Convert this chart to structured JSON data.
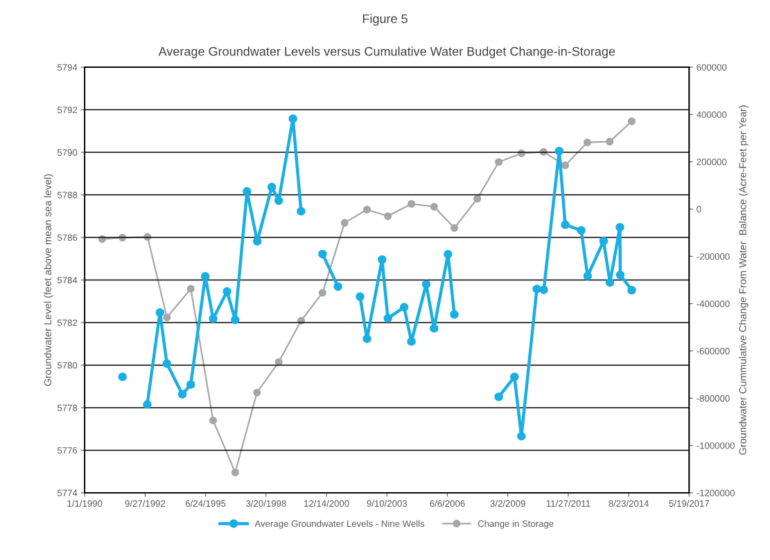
{
  "chart_data": {
    "type": "line",
    "title": "Figure 5",
    "subtitle": "Average Groundwater Levels versus Cumulative Water Budget Change-in-Storage",
    "ylabel": "Groundwater Level (feet above mean sea level)",
    "y2label": "Groundwater Cummulative Change From Water  Balance (Acre-Feet per Year)",
    "series": [
      {
        "name": "Average Groundwater Levels - Nine Wells",
        "color": "#1aaee3",
        "marker": "circle",
        "x": [
          "1991-09-18",
          "1992-03-01",
          "1992-11-01",
          "1993-05-30",
          "1993-09-22",
          "1994-06-04",
          "1994-10-22",
          "1995-06-19",
          "1995-10-27",
          "1996-06-13",
          "1996-10-26",
          "1997-05-09",
          "1997-10-26",
          "1998-06-23",
          "1998-10-16",
          "1999-06-08",
          "1999-10-21",
          "2000-03-01",
          "2000-10-10",
          "2001-06-22",
          "2002-01-01",
          "2002-06-22",
          "2002-10-15",
          "2003-06-22",
          "2003-09-25",
          "2004-06-21",
          "2004-10-19",
          "2005-06-21",
          "2005-10-29",
          "2006-06-16",
          "2006-09-29",
          "2007-06-01",
          "2008-10-03",
          "2009-06-20",
          "2009-10-13",
          "2010-06-25",
          "2010-10-18",
          "2011-06-30",
          "2011-10-08",
          "2012-06-29",
          "2012-10-12",
          "2013-07-04",
          "2013-10-17",
          "2014-03-31",
          "2014-04-05",
          "2014-10-12"
        ],
        "values": [
          5779.45,
          null,
          5778.15,
          5782.47,
          5780.07,
          5778.63,
          5779.09,
          5784.17,
          5782.18,
          5783.46,
          5782.13,
          5788.16,
          5785.82,
          5788.37,
          5787.73,
          5791.58,
          5787.23,
          null,
          5785.22,
          5783.69,
          null,
          5783.22,
          5781.24,
          5784.96,
          5782.2,
          5782.72,
          5781.11,
          5783.8,
          5781.73,
          5785.21,
          5782.38,
          null,
          5778.51,
          5779.45,
          5776.66,
          5783.58,
          5783.54,
          5790.06,
          5786.6,
          5786.33,
          5784.19,
          5785.83,
          5783.88,
          5786.48,
          5784.24,
          5783.52
        ]
      },
      {
        "name": "Change in Storage",
        "color": "#a6a6a6",
        "marker": "circle",
        "axis": "y2",
        "x": [
          "1990-10-18",
          "1991-09-18",
          "1992-11-06",
          "1993-09-22",
          "1994-10-22",
          "1995-10-27",
          "1996-10-26",
          "1997-10-21",
          "1998-10-16",
          "1999-10-21",
          "2000-10-10",
          "2001-10-10",
          "2002-10-15",
          "2003-09-25",
          "2004-10-19",
          "2005-10-29",
          "2006-09-29",
          "2007-10-14",
          "2008-10-03",
          "2009-10-13",
          "2010-10-13",
          "2011-10-08",
          "2012-10-07",
          "2013-10-12",
          "2014-10-12"
        ],
        "values": [
          -127000,
          -121000,
          -118000,
          -458000,
          -337000,
          -894000,
          -1114000,
          -776000,
          -647000,
          -472000,
          -354000,
          -58000,
          -2000,
          -30000,
          22000,
          10000,
          -80000,
          44000,
          199000,
          236000,
          242000,
          185000,
          282000,
          285000,
          371000
        ]
      }
    ],
    "xlim": [
      "1990-01-01",
      "2017-05-19"
    ],
    "xticks": [
      {
        "value": "1990-01-01",
        "label": "1/1/1990"
      },
      {
        "value": "1992-09-27",
        "label": "9/27/1992"
      },
      {
        "value": "1995-06-24",
        "label": "6/24/1995"
      },
      {
        "value": "1998-03-20",
        "label": "3/20/1998"
      },
      {
        "value": "2000-12-14",
        "label": "12/14/2000"
      },
      {
        "value": "2003-09-10",
        "label": "9/10/2003"
      },
      {
        "value": "2006-06-06",
        "label": "6/6/2006"
      },
      {
        "value": "2009-03-02",
        "label": "3/2/2009"
      },
      {
        "value": "2011-11-27",
        "label": "11/27/2011"
      },
      {
        "value": "2014-08-23",
        "label": "8/23/2014"
      },
      {
        "value": "2017-05-19",
        "label": "5/19/2017"
      }
    ],
    "ylim": [
      5774,
      5794
    ],
    "yticks": [
      5774,
      5776,
      5778,
      5780,
      5782,
      5784,
      5786,
      5788,
      5790,
      5792,
      5794
    ],
    "y2lim": [
      -1200000,
      600000
    ],
    "y2ticks": [
      -1200000,
      -1000000,
      -800000,
      -600000,
      -400000,
      -200000,
      0,
      200000,
      400000,
      600000
    ],
    "grid": "y",
    "legend": "bottom"
  }
}
